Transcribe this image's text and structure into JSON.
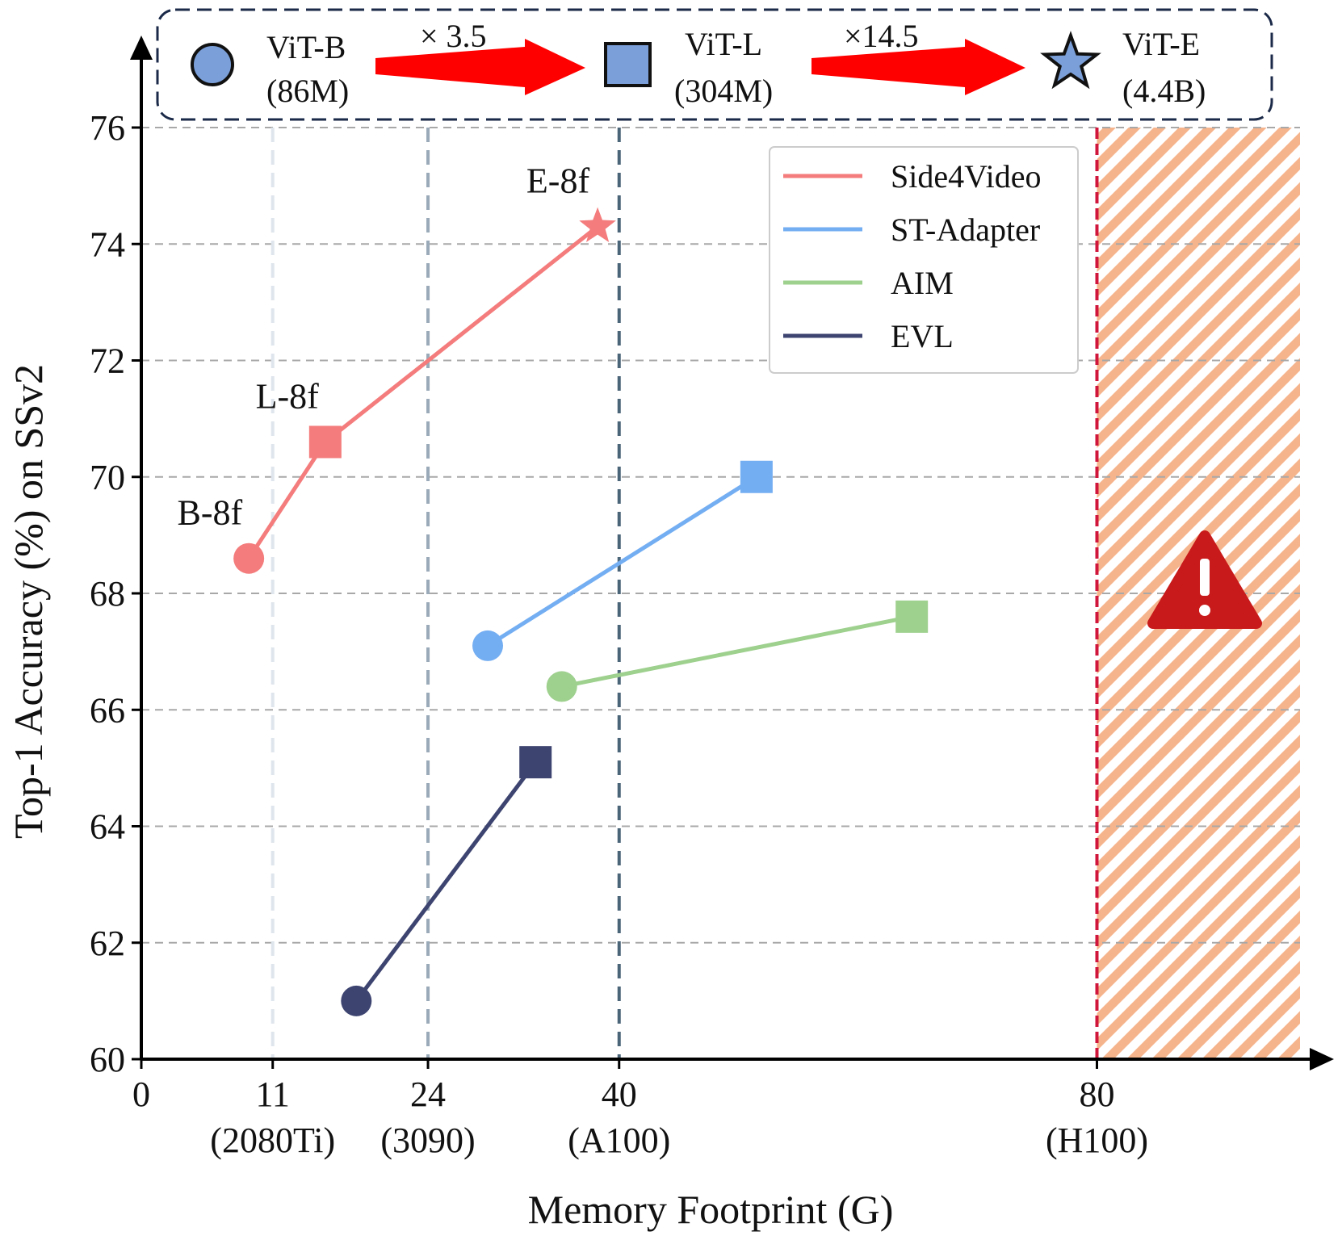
{
  "chart_data": {
    "type": "line",
    "title": "",
    "xlabel": "Memory Footprint (G)",
    "ylabel": "Top-1 Accuracy (%) on SSv2",
    "xlim": [
      0,
      97
    ],
    "ylim": [
      60,
      76
    ],
    "x_ticks": [
      {
        "value": 0,
        "label": "0",
        "sub": ""
      },
      {
        "value": 11,
        "label": "11",
        "sub": "(2080Ti)"
      },
      {
        "value": 24,
        "label": "24",
        "sub": "(3090)"
      },
      {
        "value": 40,
        "label": "40",
        "sub": "(A100)"
      },
      {
        "value": 80,
        "label": "80",
        "sub": "(H100)"
      }
    ],
    "y_ticks": [
      60,
      62,
      64,
      66,
      68,
      70,
      72,
      74,
      76
    ],
    "grid": true,
    "gpu_lines": [
      {
        "x": 11,
        "color": "#dfe5ec"
      },
      {
        "x": 24,
        "color": "#9aaab8"
      },
      {
        "x": 40,
        "color": "#4a6478"
      },
      {
        "x": 80,
        "color": "#d0163a"
      }
    ],
    "oom_region_from": 80,
    "oom_color": "#f6b48c",
    "warning_color": "#c81a1a",
    "series": [
      {
        "name": "Side4Video",
        "color": "#f47c7c",
        "points": [
          {
            "x": 9.0,
            "y": 68.6,
            "marker": "circle",
            "label": "B-8f"
          },
          {
            "x": 15.4,
            "y": 70.6,
            "marker": "square",
            "label": "L-8f"
          },
          {
            "x": 38.2,
            "y": 74.3,
            "marker": "star",
            "label": "E-8f"
          }
        ]
      },
      {
        "name": "ST-Adapter",
        "color": "#74aef2",
        "points": [
          {
            "x": 29.0,
            "y": 67.1,
            "marker": "circle"
          },
          {
            "x": 51.5,
            "y": 70.0,
            "marker": "square"
          }
        ]
      },
      {
        "name": "AIM",
        "color": "#9ed08e",
        "points": [
          {
            "x": 35.2,
            "y": 66.4,
            "marker": "circle"
          },
          {
            "x": 64.5,
            "y": 67.6,
            "marker": "square"
          }
        ]
      },
      {
        "name": "EVL",
        "color": "#3d4470",
        "points": [
          {
            "x": 18.0,
            "y": 61.0,
            "marker": "circle"
          },
          {
            "x": 33.0,
            "y": 65.1,
            "marker": "square"
          }
        ]
      }
    ],
    "legend": {
      "position": "top-right",
      "entries": [
        "Side4Video",
        "ST-Adapter",
        "AIM",
        "EVL"
      ]
    },
    "banner": {
      "items": [
        {
          "name": "ViT-B",
          "params": "(86M)",
          "marker": "circle"
        },
        {
          "name": "ViT-L",
          "params": "(304M)",
          "marker": "square"
        },
        {
          "name": "ViT-E",
          "params": "(4.4B)",
          "marker": "star"
        }
      ],
      "ratios": [
        "× 3.5",
        "×14.5"
      ],
      "marker_color": "#7b9fd8",
      "arrow_color": "#ff0000",
      "border_color": "#1b2a48"
    }
  }
}
